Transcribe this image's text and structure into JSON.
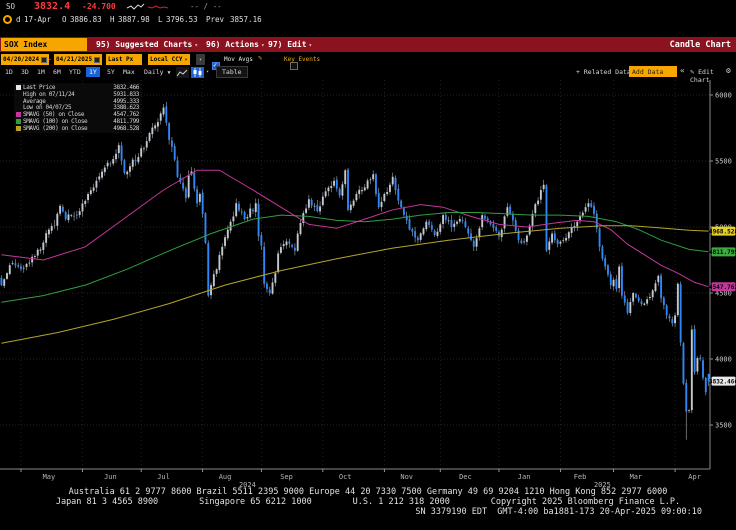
{
  "quote": {
    "ticker": "SO",
    "last": "3832.4",
    "change": "-24.700",
    "range_placeholder": "-- / --",
    "session": {
      "flag": "d",
      "date": "17-Apr",
      "o_label": "O",
      "open": "3886.83",
      "h_label": "H",
      "high": "3887.98",
      "l_label": "L",
      "low": "3796.53",
      "prev_label": "Prev",
      "prev": "3857.16"
    }
  },
  "menu_bar": {
    "security_input": "SOX Index",
    "items": [
      {
        "label": "95) Suggested Charts"
      },
      {
        "label": "96) Actions"
      },
      {
        "label": "97) Edit"
      }
    ],
    "right_title": "Candle Chart"
  },
  "controls": {
    "date_from": "04/20/2024",
    "date_sep": "-",
    "date_to": "04/21/2025",
    "field": "Last Px",
    "currency": "Local CCY",
    "mov_avgs_label": "Mov Avgs",
    "key_events_label": "Key Events"
  },
  "period_tabs": {
    "tabs": [
      "1D",
      "3D",
      "1M",
      "6M",
      "YTD",
      "1Y",
      "5Y",
      "Max"
    ],
    "selected": "1Y",
    "frequency": "Daily",
    "table_label": "Table"
  },
  "chart_actions": {
    "related_data_label": "Related Data",
    "add_data_placeholder": "Add Data",
    "edit_chart_label": "Edit Chart"
  },
  "chart_data": {
    "type": "candlestick",
    "security": "SOX Index",
    "date_range": "04/20/2024 - 04/21/2025",
    "frequency": "Daily",
    "ylim": [
      3300,
      6100
    ],
    "y_ticks": [
      6000,
      5500,
      5000,
      4500,
      4000,
      3500
    ],
    "trading_days": 254,
    "month_tick_days": [
      7,
      29,
      50,
      72,
      93,
      115,
      137,
      157,
      178,
      200,
      219,
      241
    ],
    "x_months": [
      {
        "label": "May",
        "day": 17
      },
      {
        "label": "Jun",
        "day": 39
      },
      {
        "label": "Jul",
        "day": 58
      },
      {
        "label": "Aug",
        "day": 80
      },
      {
        "label": "Sep",
        "day": 102
      },
      {
        "label": "Oct",
        "day": 123
      },
      {
        "label": "Nov",
        "day": 145
      },
      {
        "label": "Dec",
        "day": 166
      },
      {
        "label": "Jan",
        "day": 187
      },
      {
        "label": "Feb",
        "day": 207
      },
      {
        "label": "Mar",
        "day": 227
      },
      {
        "label": "Apr",
        "day": 248
      }
    ],
    "years": [
      {
        "label": "2024",
        "day": 88
      },
      {
        "label": "2025",
        "day": 215
      }
    ],
    "close_anchors": [
      [
        0,
        4560
      ],
      [
        2,
        4650
      ],
      [
        4,
        4725
      ],
      [
        7,
        4680
      ],
      [
        9,
        4720
      ],
      [
        12,
        4780
      ],
      [
        14,
        4830
      ],
      [
        17,
        4980
      ],
      [
        19,
        5010
      ],
      [
        21,
        5160
      ],
      [
        23,
        5060
      ],
      [
        25,
        5090
      ],
      [
        28,
        5120
      ],
      [
        31,
        5250
      ],
      [
        34,
        5350
      ],
      [
        36,
        5420
      ],
      [
        39,
        5480
      ],
      [
        42,
        5620
      ],
      [
        44,
        5410
      ],
      [
        46,
        5460
      ],
      [
        49,
        5530
      ],
      [
        52,
        5650
      ],
      [
        55,
        5770
      ],
      [
        57,
        5860
      ],
      [
        58,
        5905
      ],
      [
        59,
        5790
      ],
      [
        60,
        5660
      ],
      [
        62,
        5510
      ],
      [
        63,
        5380
      ],
      [
        65,
        5290
      ],
      [
        66,
        5220
      ],
      [
        67,
        5390
      ],
      [
        68,
        5420
      ],
      [
        69,
        5290
      ],
      [
        70,
        5180
      ],
      [
        71,
        5250
      ],
      [
        72,
        5100
      ],
      [
        73,
        4880
      ],
      [
        74,
        4480
      ],
      [
        75,
        4560
      ],
      [
        77,
        4680
      ],
      [
        79,
        4850
      ],
      [
        81,
        4980
      ],
      [
        83,
        5080
      ],
      [
        84,
        5180
      ],
      [
        86,
        5110
      ],
      [
        87,
        5060
      ],
      [
        89,
        5140
      ],
      [
        90,
        5120
      ],
      [
        91,
        5180
      ],
      [
        92,
        4930
      ],
      [
        93,
        4860
      ],
      [
        94,
        4570
      ],
      [
        95,
        4530
      ],
      [
        96,
        4500
      ],
      [
        98,
        4650
      ],
      [
        99,
        4800
      ],
      [
        101,
        4870
      ],
      [
        102,
        4890
      ],
      [
        104,
        4850
      ],
      [
        105,
        4820
      ],
      [
        106,
        4950
      ],
      [
        107,
        5030
      ],
      [
        109,
        5140
      ],
      [
        110,
        5210
      ],
      [
        112,
        5160
      ],
      [
        113,
        5120
      ],
      [
        115,
        5230
      ],
      [
        116,
        5270
      ],
      [
        118,
        5310
      ],
      [
        119,
        5350
      ],
      [
        120,
        5290
      ],
      [
        121,
        5240
      ],
      [
        123,
        5430
      ],
      [
        124,
        5130
      ],
      [
        126,
        5200
      ],
      [
        127,
        5250
      ],
      [
        129,
        5280
      ],
      [
        130,
        5300
      ],
      [
        132,
        5360
      ],
      [
        133,
        5400
      ],
      [
        134,
        5250
      ],
      [
        135,
        5150
      ],
      [
        137,
        5250
      ],
      [
        139,
        5320
      ],
      [
        140,
        5380
      ],
      [
        141,
        5280
      ],
      [
        142,
        5200
      ],
      [
        143,
        5150
      ],
      [
        145,
        5050
      ],
      [
        146,
        4980
      ],
      [
        148,
        4920
      ],
      [
        149,
        4900
      ],
      [
        151,
        4990
      ],
      [
        152,
        5040
      ],
      [
        154,
        4980
      ],
      [
        155,
        4940
      ],
      [
        157,
        5020
      ],
      [
        158,
        5090
      ],
      [
        160,
        5050
      ],
      [
        161,
        5000
      ],
      [
        163,
        5040
      ],
      [
        164,
        5060
      ],
      [
        166,
        5000
      ],
      [
        167,
        4950
      ],
      [
        168,
        4900
      ],
      [
        169,
        4850
      ],
      [
        171,
        4990
      ],
      [
        172,
        5090
      ],
      [
        174,
        5050
      ],
      [
        175,
        5020
      ],
      [
        177,
        4970
      ],
      [
        178,
        4930
      ],
      [
        179,
        4980
      ],
      [
        181,
        5150
      ],
      [
        182,
        5100
      ],
      [
        183,
        5050
      ],
      [
        185,
        4900
      ],
      [
        187,
        4890
      ],
      [
        189,
        5010
      ],
      [
        190,
        5100
      ],
      [
        192,
        5200
      ],
      [
        193,
        5280
      ],
      [
        194,
        5320
      ],
      [
        195,
        4820
      ],
      [
        196,
        4890
      ],
      [
        197,
        4950
      ],
      [
        198,
        4900
      ],
      [
        199,
        4870
      ],
      [
        201,
        4900
      ],
      [
        203,
        4960
      ],
      [
        204,
        5000
      ],
      [
        206,
        5040
      ],
      [
        207,
        5080
      ],
      [
        209,
        5150
      ],
      [
        210,
        5180
      ],
      [
        212,
        5100
      ],
      [
        213,
        4990
      ],
      [
        214,
        4850
      ],
      [
        215,
        4760
      ],
      [
        216,
        4700
      ],
      [
        218,
        4560
      ],
      [
        219,
        4600
      ],
      [
        220,
        4530
      ],
      [
        221,
        4700
      ],
      [
        222,
        4480
      ],
      [
        224,
        4350
      ],
      [
        226,
        4500
      ],
      [
        228,
        4440
      ],
      [
        230,
        4420
      ],
      [
        232,
        4470
      ],
      [
        233,
        4520
      ],
      [
        235,
        4630
      ],
      [
        236,
        4460
      ],
      [
        238,
        4330
      ],
      [
        240,
        4270
      ],
      [
        241,
        4330
      ],
      [
        242,
        4570
      ],
      [
        243,
        4126
      ],
      [
        244,
        3814
      ],
      [
        245,
        3602
      ],
      [
        246,
        3611
      ],
      [
        247,
        4223
      ],
      [
        248,
        3899
      ],
      [
        249,
        4007
      ],
      [
        250,
        3998
      ],
      [
        251,
        3858
      ],
      [
        252,
        3749
      ],
      [
        253,
        3832.47
      ]
    ],
    "high_point": {
      "day": 58,
      "price": 5931.833,
      "date": "07/11/24"
    },
    "low_point": {
      "day": 245,
      "price": 3388.623,
      "date": "04/07/25"
    },
    "last_candle": {
      "day": 253,
      "open": 3886.83,
      "high": 3887.98,
      "low": 3796.53,
      "close": 3832.466
    },
    "average": 4995.333,
    "moving_averages": [
      {
        "name": "SMAVG (50) on Close",
        "value": 4547.762,
        "color": "#c4369b",
        "points": [
          [
            0,
            4790
          ],
          [
            15,
            4750
          ],
          [
            30,
            4850
          ],
          [
            45,
            5080
          ],
          [
            58,
            5280
          ],
          [
            70,
            5430
          ],
          [
            78,
            5430
          ],
          [
            90,
            5280
          ],
          [
            100,
            5150
          ],
          [
            110,
            5020
          ],
          [
            120,
            4990
          ],
          [
            130,
            5060
          ],
          [
            140,
            5130
          ],
          [
            150,
            5170
          ],
          [
            158,
            5150
          ],
          [
            168,
            5080
          ],
          [
            178,
            5020
          ],
          [
            188,
            5000
          ],
          [
            198,
            5030
          ],
          [
            206,
            5050
          ],
          [
            212,
            5040
          ],
          [
            218,
            4980
          ],
          [
            224,
            4870
          ],
          [
            230,
            4790
          ],
          [
            236,
            4710
          ],
          [
            242,
            4650
          ],
          [
            248,
            4580
          ],
          [
            253,
            4548
          ]
        ]
      },
      {
        "name": "SMAVG (100) on Close",
        "value": 4811.799,
        "color": "#2f9e41",
        "points": [
          [
            0,
            4430
          ],
          [
            15,
            4480
          ],
          [
            30,
            4560
          ],
          [
            45,
            4680
          ],
          [
            60,
            4820
          ],
          [
            75,
            4950
          ],
          [
            90,
            5060
          ],
          [
            100,
            5090
          ],
          [
            110,
            5080
          ],
          [
            120,
            5050
          ],
          [
            130,
            5040
          ],
          [
            140,
            5060
          ],
          [
            150,
            5090
          ],
          [
            160,
            5110
          ],
          [
            170,
            5110
          ],
          [
            180,
            5100
          ],
          [
            190,
            5090
          ],
          [
            200,
            5090
          ],
          [
            210,
            5080
          ],
          [
            220,
            5040
          ],
          [
            228,
            4980
          ],
          [
            236,
            4900
          ],
          [
            246,
            4830
          ],
          [
            253,
            4812
          ]
        ]
      },
      {
        "name": "SMAVG (200) on Close",
        "value": 4968.528,
        "color": "#b5a32c",
        "points": [
          [
            0,
            4120
          ],
          [
            20,
            4200
          ],
          [
            40,
            4300
          ],
          [
            60,
            4420
          ],
          [
            80,
            4560
          ],
          [
            100,
            4670
          ],
          [
            120,
            4760
          ],
          [
            140,
            4840
          ],
          [
            160,
            4900
          ],
          [
            180,
            4950
          ],
          [
            200,
            4990
          ],
          [
            215,
            5010
          ],
          [
            225,
            5010
          ],
          [
            235,
            4995
          ],
          [
            246,
            4975
          ],
          [
            253,
            4969
          ]
        ]
      }
    ],
    "axis_badges": [
      {
        "value": "4968.528",
        "price": 4968.528,
        "bg": "#e3cf2a"
      },
      {
        "value": "4811.799",
        "price": 4811.799,
        "bg": "#3aa93f"
      },
      {
        "value": "4547.762",
        "price": 4547.762,
        "bg": "#c4369b"
      },
      {
        "value": "3832.466",
        "price": 3832.466,
        "bg": "#e8e8e8"
      }
    ],
    "legend": {
      "rows": [
        {
          "label": "Last Price",
          "value": "3832.466",
          "chip": "#e8e8e8"
        },
        {
          "label": "High on 07/11/24",
          "value": "5931.833",
          "chip": ""
        },
        {
          "label": "Average",
          "value": "4995.333",
          "chip": ""
        },
        {
          "label": "Low on 04/07/25",
          "value": "3388.623",
          "chip": ""
        },
        {
          "label": "SMAVG (50) on Close",
          "value": "4547.762",
          "chip": "#c4369b"
        },
        {
          "label": "SMAVG (100) on Close",
          "value": "4811.799",
          "chip": "#2f9e41"
        },
        {
          "label": "SMAVG (200) on Close",
          "value": "4968.528",
          "chip": "#b5a32c"
        }
      ]
    },
    "colors": {
      "up": "#c3c9cf",
      "down": "#2f86f6",
      "wick": "#a9b0b8",
      "grid": "#2f2f2f",
      "axis": "#8a8a8a"
    }
  },
  "footer": {
    "line1": "Australia 61 2 9777 8600 Brazil 5511 2395 9000 Europe 44 20 7330 7500 Germany 49 69 9204 1210 Hong Kong 852 2977 6000",
    "line2": "Japan 81 3 4565 8900        Singapore 65 6212 1000        U.S. 1 212 318 2000        Copyright 2025 Bloomberg Finance L.P.",
    "line3": "SN 3379190 EDT  GMT-4:00 ba1881-173 20-Apr-2025 09:00:10"
  }
}
